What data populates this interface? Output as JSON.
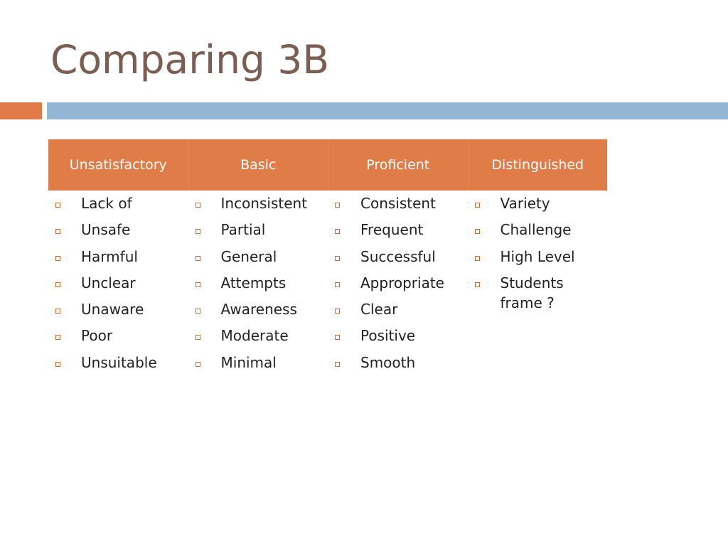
{
  "slide": {
    "title": "Comparing 3B"
  },
  "colors": {
    "title": "#7b5d52",
    "header_bg": "#e07c48",
    "accent_orange": "#e07b48",
    "accent_blue": "#93b6d4",
    "bullet": "#d9652a"
  },
  "table": {
    "columns": [
      {
        "header": "Unsatisfactory",
        "items": [
          "Lack of",
          "Unsafe",
          "Harmful",
          "Unclear",
          "Unaware",
          "Poor",
          "Unsuitable"
        ]
      },
      {
        "header": "Basic",
        "items": [
          "Inconsistent",
          "Partial",
          "General",
          "Attempts",
          "Awareness",
          "Moderate",
          "Minimal"
        ]
      },
      {
        "header": "Proficient",
        "items": [
          "Consistent",
          "Frequent",
          "Successful",
          "Appropriate",
          "Clear",
          "Positive",
          "Smooth"
        ]
      },
      {
        "header": "Distinguished",
        "items": [
          "Variety",
          "Challenge",
          "High Level",
          "Students frame ?"
        ]
      }
    ]
  }
}
